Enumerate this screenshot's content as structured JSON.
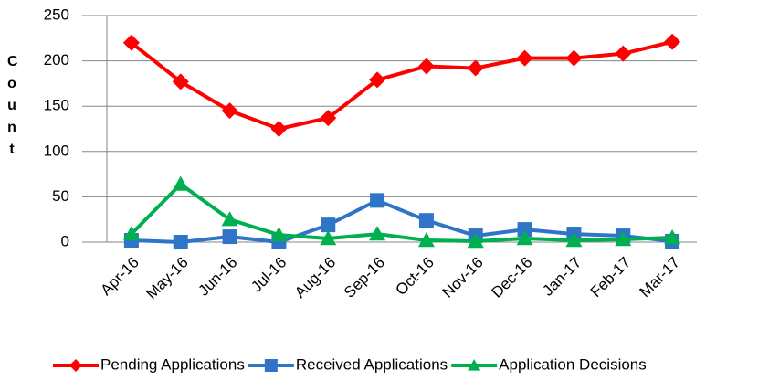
{
  "chart_data": {
    "type": "line",
    "y_label": "Count",
    "categories": [
      "Apr-16",
      "May-16",
      "Jun-16",
      "Jul-16",
      "Aug-16",
      "Sep-16",
      "Oct-16",
      "Nov-16",
      "Dec-16",
      "Jan-17",
      "Feb-17",
      "Mar-17"
    ],
    "series": [
      {
        "name": "Pending Applications",
        "color": "#ff0000",
        "marker": "diamond",
        "values": [
          220,
          177,
          145,
          125,
          137,
          179,
          194,
          192,
          203,
          203,
          208,
          221
        ]
      },
      {
        "name": "Received Applications",
        "color": "#2e75c8",
        "marker": "square",
        "values": [
          2,
          0,
          6,
          0,
          19,
          46,
          24,
          7,
          14,
          9,
          7,
          1
        ]
      },
      {
        "name": "Application Decisions",
        "color": "#00b050",
        "marker": "triangle",
        "values": [
          9,
          64,
          25,
          8,
          4,
          9,
          2,
          1,
          4,
          2,
          3,
          5
        ]
      }
    ],
    "ylim": [
      0,
      250
    ],
    "yticks": [
      0,
      50,
      100,
      150,
      200,
      250
    ],
    "grid": true,
    "legend": "bottom"
  }
}
